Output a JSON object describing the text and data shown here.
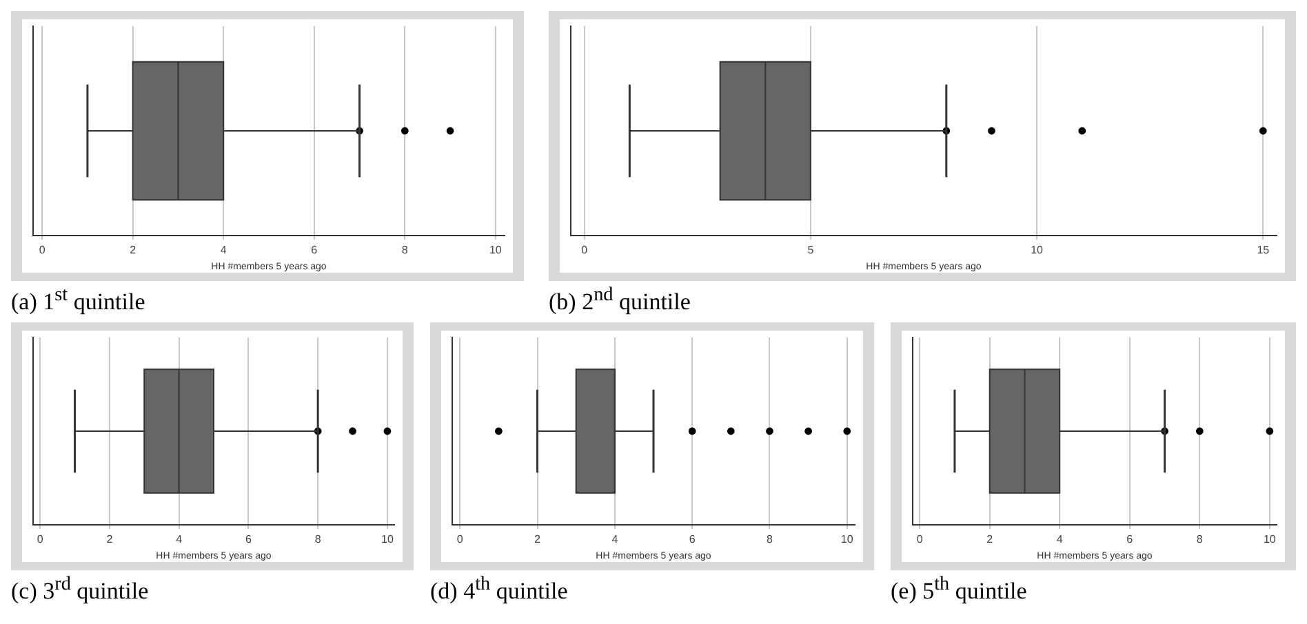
{
  "chart_data": [
    {
      "type": "box",
      "title": "(a)  1$^{st}$ quintile",
      "xlabel": "HH #members 5 years ago",
      "orientation": "horizontal",
      "categories": [
        null
      ],
      "xlim": [
        -0.2,
        10.2
      ],
      "xticks": [
        0,
        2,
        4,
        6,
        8,
        10
      ],
      "grid": "x",
      "marker": "circle",
      "series": [
        {
          "color": "#666666",
          "boxes": [
            {
              "low": 1,
              "q1": 2,
              "median": 3,
              "q3": 4,
              "high": 7,
              "outliers": [
                7,
                8,
                9
              ]
            }
          ]
        }
      ]
    },
    {
      "type": "box",
      "title": "(b) 2$^{nd}$ quintile",
      "xlabel": "HH #members 5 years ago",
      "orientation": "horizontal",
      "categories": [
        null
      ],
      "xlim": [
        -0.3,
        15.3
      ],
      "xticks": [
        0,
        5,
        10,
        15
      ],
      "grid": "x",
      "marker": "circle",
      "series": [
        {
          "color": "#666666",
          "boxes": [
            {
              "low": 1,
              "q1": 3,
              "median": 4,
              "q3": 5,
              "high": 8,
              "outliers": [
                8,
                9,
                11,
                15
              ]
            }
          ]
        }
      ]
    },
    {
      "type": "box",
      "title": "(c) 3$^{rd}$ quintile",
      "xlabel": "HH #members 5 years ago",
      "orientation": "horizontal",
      "categories": [
        null
      ],
      "xlim": [
        -0.2,
        10.2
      ],
      "xticks": [
        0,
        2,
        4,
        6,
        8,
        10
      ],
      "grid": "x",
      "marker": "circle",
      "series": [
        {
          "color": "#666666",
          "boxes": [
            {
              "low": 1,
              "q1": 3,
              "median": 4,
              "q3": 5,
              "high": 8,
              "outliers": [
                8,
                9,
                10
              ]
            }
          ]
        }
      ]
    },
    {
      "type": "box",
      "title": "(d) 4$^{th}$ quintile",
      "xlabel": "HH #members 5 years ago",
      "orientation": "horizontal",
      "categories": [
        null
      ],
      "xlim": [
        -0.2,
        10.2
      ],
      "xticks": [
        0,
        2,
        4,
        6,
        8,
        10
      ],
      "grid": "x",
      "marker": "circle",
      "series": [
        {
          "color": "#666666",
          "boxes": [
            {
              "low": 2,
              "q1": 3,
              "median": 4,
              "q3": 4,
              "high": 5,
              "outliers": [
                1,
                6,
                7,
                8,
                9,
                10
              ]
            }
          ]
        }
      ]
    },
    {
      "type": "box",
      "title": "(e) 5$^{th}$ quintile",
      "xlabel": "HH #members 5 years ago",
      "orientation": "horizontal",
      "categories": [
        null
      ],
      "xlim": [
        -0.2,
        10.2
      ],
      "xticks": [
        0,
        2,
        4,
        6,
        8,
        10
      ],
      "grid": "x",
      "marker": "circle",
      "series": [
        {
          "color": "#666666",
          "boxes": [
            {
              "low": 1,
              "q1": 2,
              "median": 3,
              "q3": 4,
              "high": 7,
              "outliers": [
                7,
                8,
                10
              ]
            }
          ]
        }
      ]
    }
  ]
}
